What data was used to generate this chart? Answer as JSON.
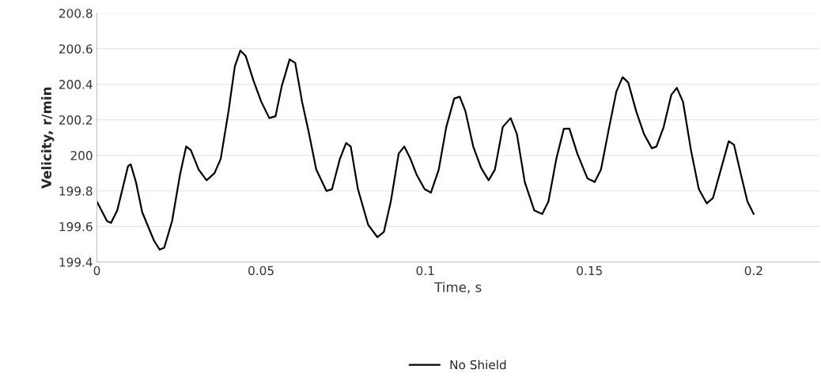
{
  "chart_data": {
    "type": "line",
    "xlabel": "Time, s",
    "ylabel": "Velicity, r/min",
    "xlim": [
      0,
      0.22
    ],
    "xticks": [
      0,
      0.05,
      0.1,
      0.15,
      0.2
    ],
    "ylim": [
      199.4,
      200.8
    ],
    "yticks": [
      199.4,
      199.6,
      199.8,
      200,
      200.2,
      200.4,
      200.6,
      200.8
    ],
    "grid": "y",
    "legend": "bottom",
    "marker": "none",
    "line_style": "solid",
    "x": [
      0,
      0.0031,
      0.0043,
      0.0062,
      0.0095,
      0.0103,
      0.0119,
      0.0138,
      0.0174,
      0.0191,
      0.0205,
      0.0229,
      0.0253,
      0.0272,
      0.0286,
      0.031,
      0.0334,
      0.0358,
      0.0377,
      0.0401,
      0.042,
      0.0437,
      0.0453,
      0.0477,
      0.0501,
      0.0525,
      0.0544,
      0.0563,
      0.0587,
      0.0604,
      0.0625,
      0.0644,
      0.0668,
      0.0699,
      0.0716,
      0.074,
      0.0759,
      0.0773,
      0.0795,
      0.0826,
      0.0854,
      0.0874,
      0.0895,
      0.0919,
      0.0936,
      0.0955,
      0.0974,
      0.0998,
      0.1017,
      0.1041,
      0.1064,
      0.1088,
      0.1105,
      0.1122,
      0.1146,
      0.117,
      0.1193,
      0.1212,
      0.1236,
      0.126,
      0.1279,
      0.1303,
      0.1332,
      0.1356,
      0.1375,
      0.1399,
      0.1422,
      0.1439,
      0.1463,
      0.1494,
      0.1516,
      0.1535,
      0.1558,
      0.1582,
      0.1601,
      0.1618,
      0.1642,
      0.1666,
      0.169,
      0.1704,
      0.1726,
      0.1749,
      0.1766,
      0.1785,
      0.1809,
      0.1833,
      0.1857,
      0.1876,
      0.19,
      0.1924,
      0.194,
      0.1964,
      0.1981,
      0.2
    ],
    "series": [
      {
        "name": "No Shield",
        "color": "#000000",
        "values": [
          199.74,
          199.63,
          199.62,
          199.69,
          199.94,
          199.95,
          199.85,
          199.68,
          199.52,
          199.47,
          199.48,
          199.63,
          199.89,
          200.05,
          200.03,
          199.92,
          199.86,
          199.9,
          199.98,
          200.25,
          200.5,
          200.59,
          200.56,
          200.42,
          200.3,
          200.21,
          200.22,
          200.39,
          200.54,
          200.52,
          200.3,
          200.14,
          199.92,
          199.8,
          199.81,
          199.98,
          200.07,
          200.05,
          199.81,
          199.61,
          199.54,
          199.57,
          199.74,
          200.01,
          200.05,
          199.98,
          199.89,
          199.81,
          199.79,
          199.92,
          200.16,
          200.32,
          200.33,
          200.25,
          200.05,
          199.93,
          199.86,
          199.92,
          200.16,
          200.21,
          200.12,
          199.85,
          199.69,
          199.67,
          199.74,
          199.98,
          200.15,
          200.15,
          200.01,
          199.87,
          199.85,
          199.92,
          200.14,
          200.36,
          200.44,
          200.41,
          200.25,
          200.12,
          200.04,
          200.05,
          200.16,
          200.34,
          200.38,
          200.3,
          200.03,
          199.81,
          199.73,
          199.76,
          199.92,
          200.08,
          200.06,
          199.87,
          199.74,
          199.67
        ]
      }
    ]
  }
}
